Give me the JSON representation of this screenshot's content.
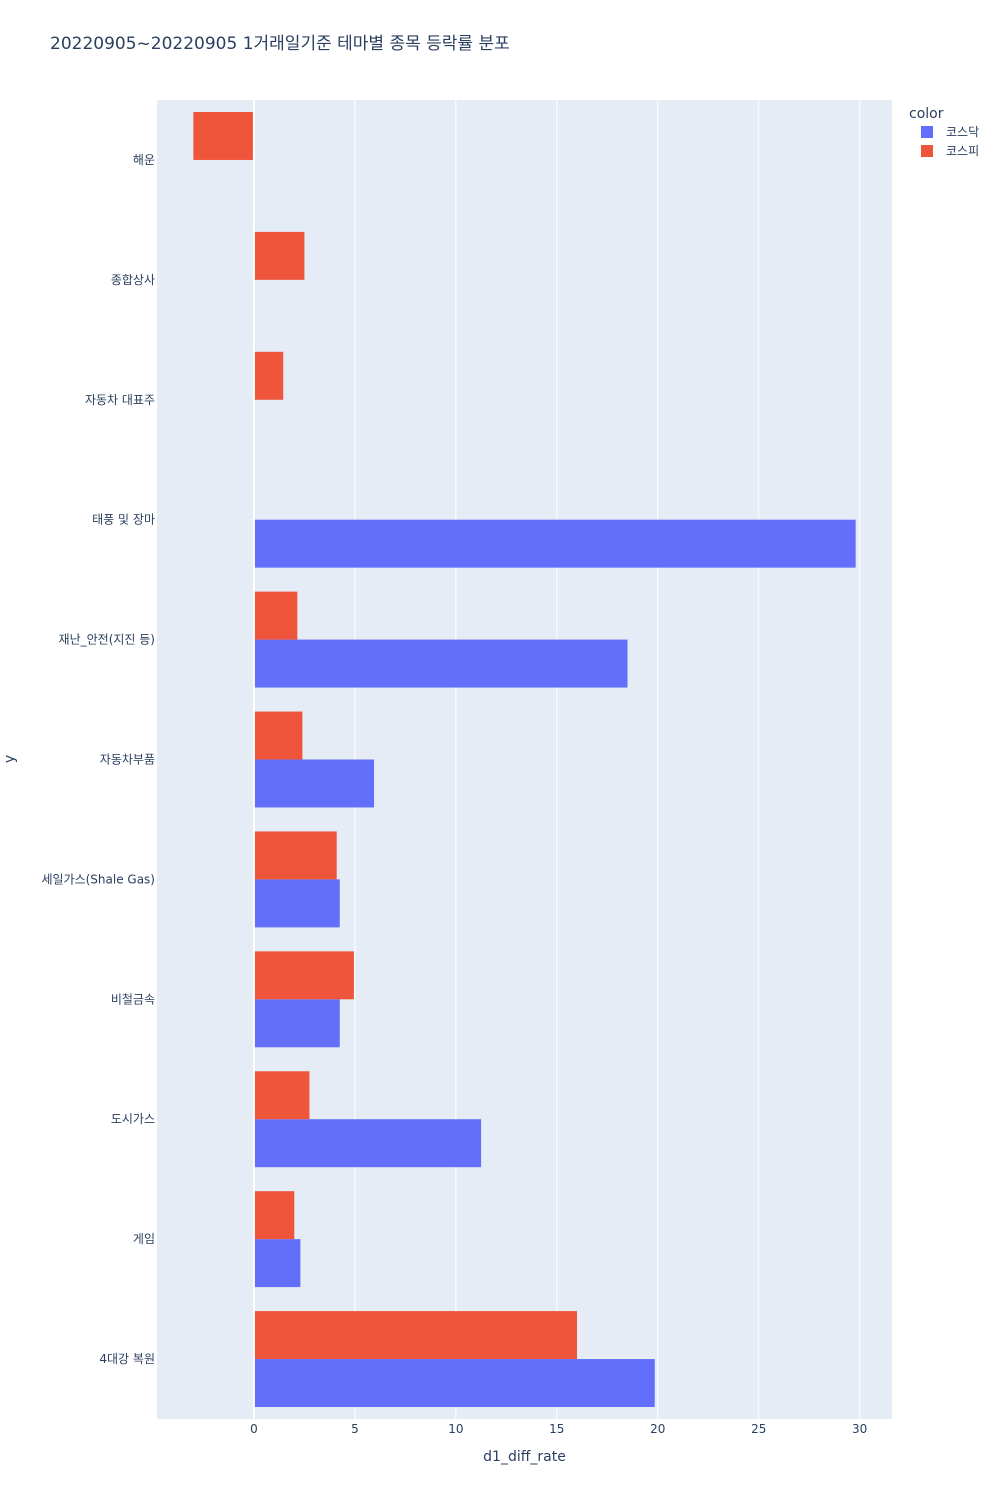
{
  "chart_data": {
    "type": "bar",
    "orientation": "horizontal",
    "title": "20220905~20220905 1거래일기준 테마별 종목 등락률 분포",
    "xlabel": "d1_diff_rate",
    "ylabel": "y",
    "xlim": [
      -4.8,
      31.6
    ],
    "xticks": [
      0,
      5,
      10,
      15,
      20,
      25,
      30
    ],
    "grid": true,
    "legend": {
      "title": "color",
      "placement": "top-right"
    },
    "categories": [
      "해운",
      "종합상사",
      "자동차 대표주",
      "태풍 및 장마",
      "재난_안전(지진 등)",
      "자동차부품",
      "세일가스(Shale Gas)",
      "비철금속",
      "도시가스",
      "게임",
      "4대강 복원"
    ],
    "series": [
      {
        "name": "코스닥",
        "color": "#636efa",
        "values": [
          null,
          null,
          null,
          29.8,
          18.5,
          5.95,
          4.25,
          4.25,
          11.25,
          2.3,
          19.85
        ]
      },
      {
        "name": "코스피",
        "color": "#ef553b",
        "values": [
          -3.0,
          2.5,
          1.45,
          null,
          2.15,
          2.4,
          4.1,
          4.95,
          2.75,
          2.0,
          16.0
        ]
      }
    ]
  }
}
